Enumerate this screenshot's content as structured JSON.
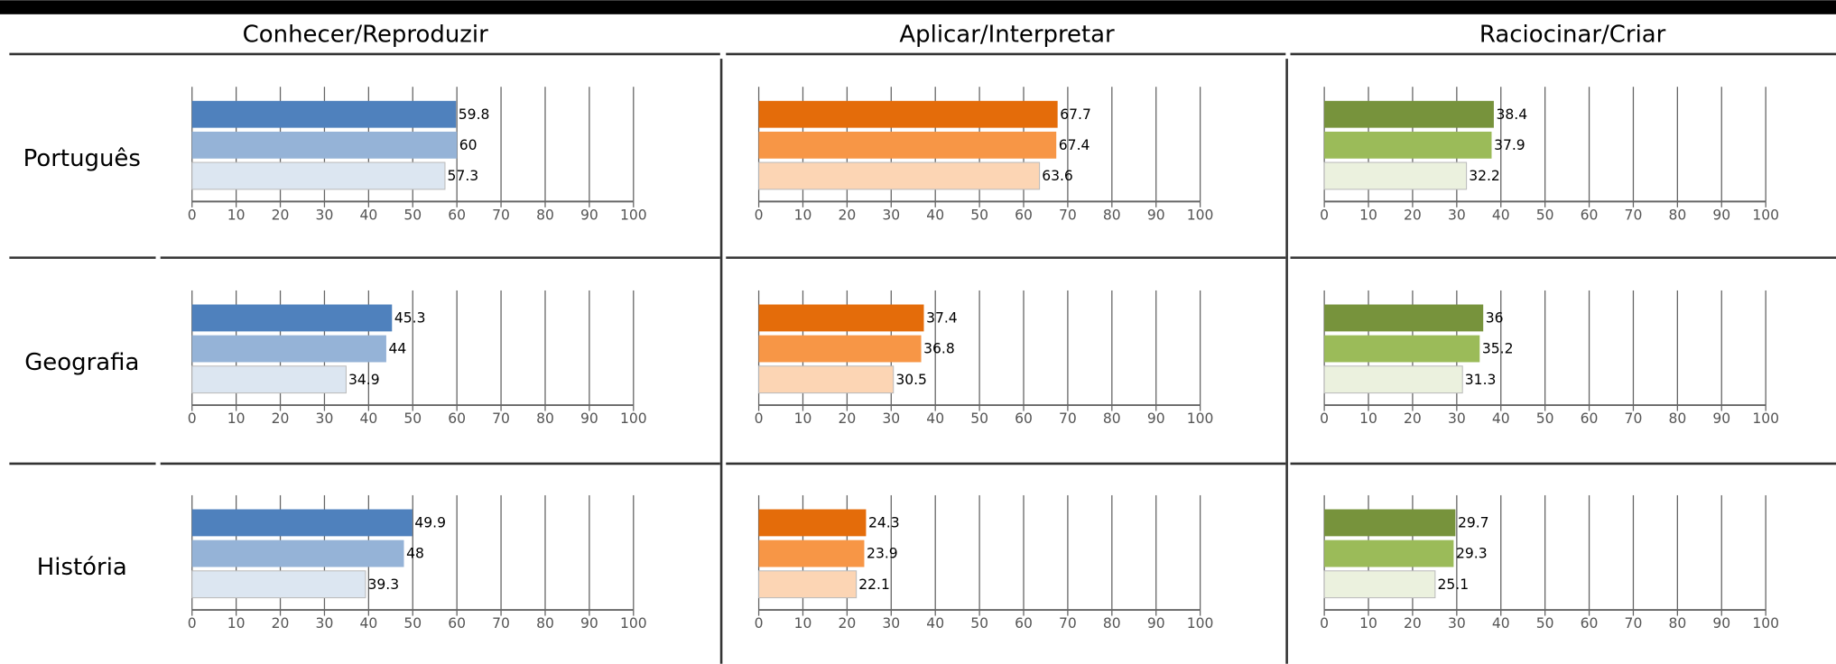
{
  "columns": [
    "Conhecer/Reproduzir",
    "Aplicar/Interpretar",
    "Raciocinar/Criar"
  ],
  "rows": [
    "Português",
    "Geografia",
    "História"
  ],
  "chart_data": [
    {
      "type": "bar",
      "orientation": "horizontal",
      "values": [
        59.8,
        60,
        57.3
      ],
      "colors": [
        "#4f81bd",
        "#95b3d7",
        "#dce6f1"
      ],
      "xlim": [
        0,
        100
      ],
      "xticks": [
        0,
        10,
        20,
        30,
        40,
        50,
        60,
        70,
        80,
        90,
        100
      ],
      "grid": true
    },
    {
      "type": "bar",
      "orientation": "horizontal",
      "values": [
        67.7,
        67.4,
        63.6
      ],
      "colors": [
        "#e46c0a",
        "#f79646",
        "#fcd5b4"
      ],
      "xlim": [
        0,
        100
      ],
      "xticks": [
        0,
        10,
        20,
        30,
        40,
        50,
        60,
        70,
        80,
        90,
        100
      ],
      "grid": true
    },
    {
      "type": "bar",
      "orientation": "horizontal",
      "values": [
        38.4,
        37.9,
        32.2
      ],
      "colors": [
        "#77933c",
        "#9bbb59",
        "#ebf1de"
      ],
      "xlim": [
        0,
        100
      ],
      "xticks": [
        0,
        10,
        20,
        30,
        40,
        50,
        60,
        70,
        80,
        90,
        100
      ],
      "grid": true
    },
    {
      "type": "bar",
      "orientation": "horizontal",
      "values": [
        45.3,
        44,
        34.9
      ],
      "colors": [
        "#4f81bd",
        "#95b3d7",
        "#dce6f1"
      ],
      "xlim": [
        0,
        100
      ],
      "xticks": [
        0,
        10,
        20,
        30,
        40,
        50,
        60,
        70,
        80,
        90,
        100
      ],
      "grid": true
    },
    {
      "type": "bar",
      "orientation": "horizontal",
      "values": [
        37.4,
        36.8,
        30.5
      ],
      "colors": [
        "#e46c0a",
        "#f79646",
        "#fcd5b4"
      ],
      "xlim": [
        0,
        100
      ],
      "xticks": [
        0,
        10,
        20,
        30,
        40,
        50,
        60,
        70,
        80,
        90,
        100
      ],
      "grid": true
    },
    {
      "type": "bar",
      "orientation": "horizontal",
      "values": [
        36,
        35.2,
        31.3
      ],
      "colors": [
        "#77933c",
        "#9bbb59",
        "#ebf1de"
      ],
      "xlim": [
        0,
        100
      ],
      "xticks": [
        0,
        10,
        20,
        30,
        40,
        50,
        60,
        70,
        80,
        90,
        100
      ],
      "grid": true
    },
    {
      "type": "bar",
      "orientation": "horizontal",
      "values": [
        49.9,
        48,
        39.3
      ],
      "colors": [
        "#4f81bd",
        "#95b3d7",
        "#dce6f1"
      ],
      "xlim": [
        0,
        100
      ],
      "xticks": [
        0,
        10,
        20,
        30,
        40,
        50,
        60,
        70,
        80,
        90,
        100
      ],
      "grid": true
    },
    {
      "type": "bar",
      "orientation": "horizontal",
      "values": [
        24.3,
        23.9,
        22.1
      ],
      "colors": [
        "#e46c0a",
        "#f79646",
        "#fcd5b4"
      ],
      "xlim": [
        0,
        100
      ],
      "xticks": [
        0,
        10,
        20,
        30,
        40,
        50,
        60,
        70,
        80,
        90,
        100
      ],
      "grid": true
    },
    {
      "type": "bar",
      "orientation": "horizontal",
      "values": [
        29.7,
        29.3,
        25.1
      ],
      "colors": [
        "#77933c",
        "#9bbb59",
        "#ebf1de"
      ],
      "xlim": [
        0,
        100
      ],
      "xticks": [
        0,
        10,
        20,
        30,
        40,
        50,
        60,
        70,
        80,
        90,
        100
      ],
      "grid": true
    }
  ]
}
